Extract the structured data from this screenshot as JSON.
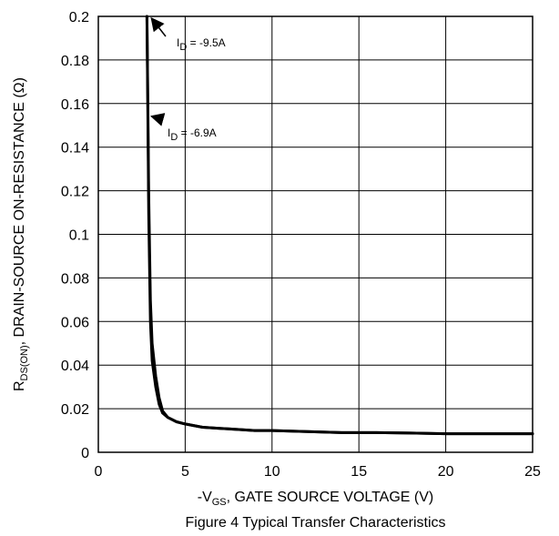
{
  "chart_data": {
    "type": "line",
    "caption": "Figure 4 Typical Transfer Characteristics",
    "xlabel": {
      "prefix": "-V",
      "sub": "GS",
      "rest": ", GATE SOURCE VOLTAGE (V)"
    },
    "ylabel": {
      "prefix": "R",
      "sub": "DS(ON)",
      "rest": ", DRAIN-SOURCE ON-RESISTANCE (Ω)"
    },
    "xlim": [
      0,
      25
    ],
    "ylim": [
      0,
      0.2
    ],
    "xticks": [
      "0",
      "5",
      "10",
      "15",
      "20",
      "25"
    ],
    "yticks": [
      "0",
      "0.02",
      "0.04",
      "0.06",
      "0.08",
      "0.1",
      "0.12",
      "0.14",
      "0.16",
      "0.18",
      "0.2"
    ],
    "grid": true,
    "series": [
      {
        "name": "I_D = -9.5A",
        "x": [
          2.8,
          2.85,
          2.9,
          3.0,
          3.1,
          3.3,
          3.5,
          3.7,
          4.0,
          4.5,
          5,
          6,
          7,
          8,
          9,
          10,
          12,
          14,
          16,
          18,
          20,
          22,
          25
        ],
        "y": [
          0.2,
          0.16,
          0.12,
          0.07,
          0.05,
          0.035,
          0.025,
          0.019,
          0.016,
          0.014,
          0.013,
          0.0115,
          0.011,
          0.0105,
          0.01,
          0.01,
          0.0095,
          0.009,
          0.009,
          0.0088,
          0.0085,
          0.0085,
          0.0085
        ]
      },
      {
        "name": "I_D = -6.9A",
        "x": [
          2.8,
          2.85,
          2.9,
          3.0,
          3.1,
          3.3,
          3.5,
          3.7,
          4.0,
          4.5,
          5,
          6,
          7,
          8,
          9,
          10,
          12,
          14,
          16,
          18,
          20,
          22,
          25
        ],
        "y": [
          0.2,
          0.155,
          0.11,
          0.06,
          0.042,
          0.03,
          0.022,
          0.018,
          0.016,
          0.014,
          0.013,
          0.0115,
          0.011,
          0.0105,
          0.01,
          0.01,
          0.0095,
          0.009,
          0.009,
          0.0088,
          0.0085,
          0.0085,
          0.0085
        ]
      }
    ],
    "annotations": [
      {
        "prefix": "I",
        "sub": "D",
        "rest": " = -9.5A",
        "arrow_to": [
          2.85,
          0.2
        ]
      },
      {
        "prefix": "I",
        "sub": "D",
        "rest": " = -6.9A",
        "arrow_to": [
          2.85,
          0.155
        ]
      }
    ]
  }
}
